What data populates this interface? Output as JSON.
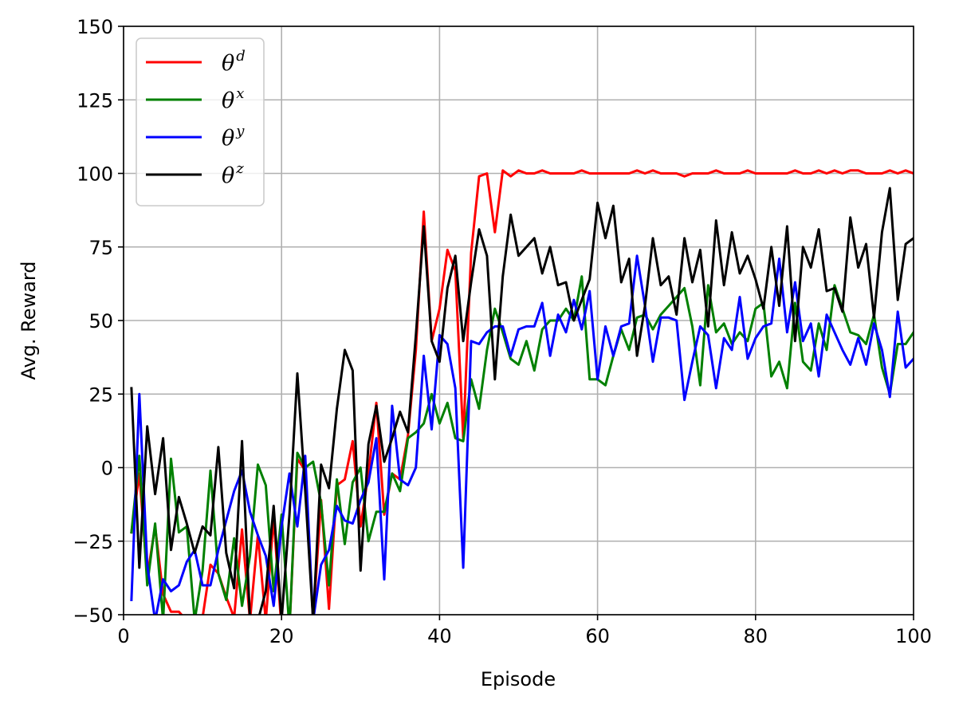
{
  "chart_data": {
    "type": "line",
    "title": "",
    "xlabel": "Episode",
    "ylabel": "Avg. Reward",
    "xlim": [
      0,
      100
    ],
    "ylim": [
      -50,
      150
    ],
    "xticks": [
      "0",
      "20",
      "40",
      "60",
      "80",
      "100"
    ],
    "yticks": [
      "−50",
      "−25",
      "0",
      "25",
      "50",
      "75",
      "100",
      "125",
      "150"
    ],
    "grid": true,
    "legend_position": "upper-left",
    "x": [
      1,
      2,
      3,
      4,
      5,
      6,
      7,
      8,
      9,
      10,
      11,
      12,
      13,
      14,
      15,
      16,
      17,
      18,
      19,
      20,
      21,
      22,
      23,
      24,
      25,
      26,
      27,
      28,
      29,
      30,
      31,
      32,
      33,
      34,
      35,
      36,
      37,
      38,
      39,
      40,
      41,
      42,
      43,
      44,
      45,
      46,
      47,
      48,
      49,
      50,
      51,
      52,
      53,
      54,
      55,
      56,
      57,
      58,
      59,
      60,
      61,
      62,
      63,
      64,
      65,
      66,
      67,
      68,
      69,
      70,
      71,
      72,
      73,
      74,
      75,
      76,
      77,
      78,
      79,
      80,
      81,
      82,
      83,
      84,
      85,
      86,
      87,
      88,
      89,
      90,
      91,
      92,
      93,
      94,
      95,
      96,
      97,
      98,
      99,
      100
    ],
    "series": [
      {
        "name": "θ",
        "superscript": "d",
        "color": "#ff0000",
        "values": [
          -22,
          -2,
          -37,
          -20,
          -43,
          -49,
          -49,
          -52,
          -52,
          -51,
          -33,
          -36,
          -44,
          -51,
          -21,
          -52,
          -23,
          -52,
          -17,
          -55,
          -55,
          3,
          -1,
          -52,
          -11,
          -48,
          -6,
          -4,
          9,
          -20,
          -2,
          22,
          -16,
          -2,
          -4,
          11,
          40,
          87,
          43,
          54,
          74,
          67,
          10,
          73,
          99,
          100,
          80,
          101,
          99,
          101,
          100,
          100,
          101,
          100,
          100,
          100,
          100,
          101,
          100,
          100,
          100,
          100,
          100,
          100,
          101,
          100,
          101,
          100,
          100,
          100,
          99,
          100,
          100,
          100,
          101,
          100,
          100,
          100,
          101,
          100,
          100,
          100,
          100,
          100,
          101,
          100,
          100,
          101,
          100,
          101,
          100,
          101,
          101,
          100,
          100,
          100,
          101,
          100,
          101,
          100
        ],
        "label_sup": "d"
      },
      {
        "name": "θ",
        "superscript": "x",
        "color": "#008000",
        "values": [
          -22,
          4,
          -40,
          -19,
          -52,
          3,
          -22,
          -20,
          -52,
          -35,
          -1,
          -36,
          -45,
          -24,
          -47,
          -30,
          1,
          -6,
          -42,
          -16,
          -55,
          5,
          0,
          2,
          -12,
          -40,
          -4,
          -26,
          -5,
          0,
          -25,
          -15,
          -15,
          -2,
          -8,
          10,
          12,
          15,
          25,
          15,
          22,
          10,
          9,
          30,
          20,
          40,
          54,
          46,
          37,
          35,
          43,
          33,
          47,
          50,
          50,
          54,
          50,
          65,
          30,
          30,
          28,
          38,
          47,
          40,
          51,
          52,
          47,
          52,
          55,
          58,
          61,
          48,
          28,
          62,
          46,
          49,
          42,
          46,
          43,
          54,
          56,
          31,
          36,
          27,
          56,
          36,
          33,
          49,
          40,
          62,
          54,
          46,
          45,
          42,
          52,
          34,
          25,
          42,
          42,
          46
        ]
      },
      {
        "name": "θ",
        "superscript": "y",
        "color": "#0000ff",
        "values": [
          -45,
          25,
          -33,
          -52,
          -38,
          -42,
          -40,
          -32,
          -28,
          -40,
          -40,
          -28,
          -18,
          -8,
          -1,
          -15,
          -23,
          -30,
          -47,
          -20,
          -2,
          -20,
          4,
          -52,
          -33,
          -28,
          -13,
          -18,
          -19,
          -11,
          -5,
          10,
          -38,
          21,
          -4,
          -6,
          0,
          38,
          13,
          45,
          42,
          27,
          -34,
          43,
          42,
          46,
          48,
          48,
          38,
          47,
          48,
          48,
          56,
          38,
          52,
          46,
          57,
          47,
          60,
          30,
          48,
          38,
          48,
          49,
          72,
          55,
          36,
          51,
          51,
          50,
          23,
          36,
          48,
          45,
          27,
          44,
          40,
          58,
          37,
          44,
          48,
          49,
          71,
          46,
          63,
          43,
          49,
          31,
          52,
          46,
          40,
          35,
          44,
          35,
          49,
          40,
          24,
          53,
          34,
          37
        ]
      },
      {
        "name": "θ",
        "superscript": "z",
        "color": "#000000",
        "values": [
          27,
          -34,
          14,
          -9,
          10,
          -28,
          -10,
          -19,
          -29,
          -20,
          -23,
          7,
          -29,
          -41,
          9,
          -52,
          -52,
          -42,
          -13,
          -52,
          -16,
          32,
          -8,
          -52,
          1,
          -7,
          20,
          40,
          33,
          -35,
          8,
          21,
          2,
          10,
          19,
          12,
          45,
          82,
          43,
          36,
          61,
          72,
          43,
          63,
          81,
          72,
          30,
          65,
          86,
          72,
          75,
          78,
          66,
          75,
          62,
          63,
          50,
          57,
          64,
          90,
          78,
          89,
          63,
          71,
          38,
          55,
          78,
          62,
          65,
          52,
          78,
          63,
          74,
          48,
          84,
          62,
          80,
          66,
          72,
          64,
          54,
          75,
          55,
          82,
          43,
          75,
          68,
          81,
          60,
          61,
          53,
          85,
          68,
          76,
          51,
          80,
          95,
          57,
          76,
          78
        ]
      }
    ]
  }
}
